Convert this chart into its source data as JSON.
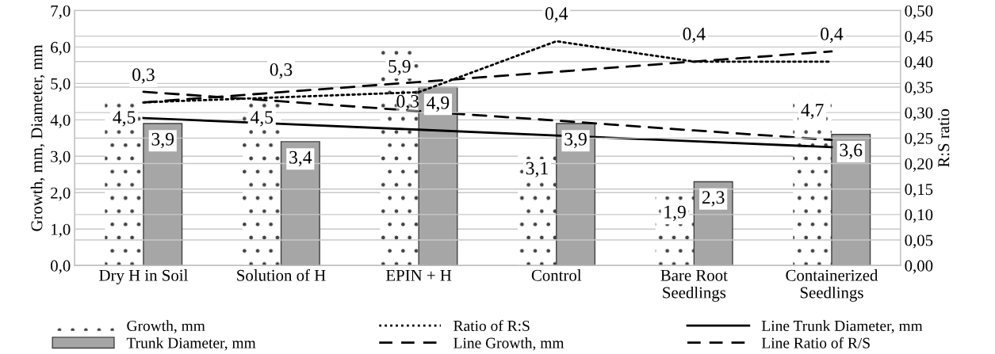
{
  "chart_data": {
    "type": "bar",
    "ylabel": "Growth, mm, Diameter, mm",
    "y2label": "R:S ratio",
    "categories": [
      "Dry H in Soil",
      "Solution of H",
      "EPIN + H",
      "Control",
      "Bare Root\nSeedlings",
      "Containerized\nSeedlings"
    ],
    "series": [
      {
        "name": "Growth, mm",
        "color": "#ffffff",
        "values": [
          4.5,
          4.5,
          5.9,
          3.1,
          1.9,
          4.7
        ],
        "value_labels": [
          "4,5",
          "4,5",
          "5,9",
          "3,1",
          "1,9",
          "4,7"
        ]
      },
      {
        "name": "Trunk Diameter, mm",
        "color": "#a6a6a6",
        "values": [
          3.9,
          3.4,
          4.9,
          3.9,
          2.3,
          3.6
        ],
        "value_labels": [
          "3,9",
          "3,4",
          "4,9",
          "3,9",
          "2,3",
          "3,6"
        ]
      },
      {
        "name": "Ratio of R:S",
        "type": "line",
        "axis": "y2",
        "color": "#000000",
        "line_style": "dotted",
        "values": [
          0.32,
          0.33,
          0.34,
          0.44,
          0.4,
          0.4
        ],
        "value_labels": [
          "0,3",
          "0,3",
          "0,3",
          "0,4",
          "0,4",
          "0,4"
        ]
      },
      {
        "name": "Line Growth, mm",
        "type": "line",
        "color": "#000000",
        "line_style": "dashed",
        "values": [
          4.77,
          4.51,
          4.24,
          3.98,
          3.71,
          3.45
        ]
      },
      {
        "name": "Line Trunk Diameter, mm",
        "type": "line",
        "color": "#000000",
        "line_style": "solid",
        "values": [
          4.05,
          3.89,
          3.73,
          3.57,
          3.41,
          3.25
        ]
      },
      {
        "name": "Line Ratio of R/S",
        "type": "line",
        "axis": "y2",
        "color": "#000000",
        "line_style": "dashed",
        "values": [
          0.32,
          0.34,
          0.36,
          0.38,
          0.4,
          0.42
        ]
      }
    ],
    "ylim": [
      0,
      7
    ],
    "yticks": [
      {
        "value": 0,
        "label": "0,0"
      },
      {
        "value": 1,
        "label": "1,0"
      },
      {
        "value": 2,
        "label": "2,0"
      },
      {
        "value": 3,
        "label": "3,0"
      },
      {
        "value": 4,
        "label": "4,0"
      },
      {
        "value": 5,
        "label": "5,0"
      },
      {
        "value": 6,
        "label": "6,0"
      },
      {
        "value": 7,
        "label": "7,0"
      }
    ],
    "y2lim": [
      0,
      0.5
    ],
    "y2ticks": [
      {
        "value": 0,
        "label": "0,00"
      },
      {
        "value": 0.05,
        "label": "0,05"
      },
      {
        "value": 0.1,
        "label": "0,10"
      },
      {
        "value": 0.15,
        "label": "0,15"
      },
      {
        "value": 0.2,
        "label": "0,20"
      },
      {
        "value": 0.25,
        "label": "0,25"
      },
      {
        "value": 0.3,
        "label": "0,30"
      },
      {
        "value": 0.35,
        "label": "0,35"
      },
      {
        "value": 0.4,
        "label": "0,40"
      },
      {
        "value": 0.45,
        "label": "0,45"
      },
      {
        "value": 0.5,
        "label": "0,50"
      }
    ],
    "grid": "y",
    "legend": "bottom",
    "marker": "none"
  }
}
